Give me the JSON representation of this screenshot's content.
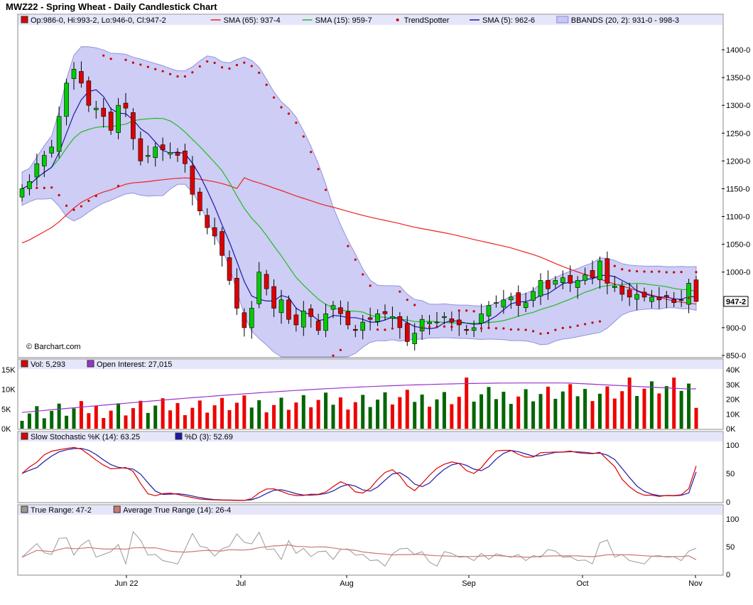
{
  "header": {
    "title": "MWZ22 - Spring Wheat - Daily Candlestick Chart"
  },
  "colors": {
    "up": "#00cc00",
    "down": "#dd0000",
    "sma65": "#ee2222",
    "sma15": "#22bb22",
    "sma5": "#1a1aaa",
    "trend": "#cc0000",
    "bands": "#c8c8f4",
    "band_edge": "#8888dd",
    "legend_bar": "#e6e6fb",
    "oi": "#9933cc",
    "k": "#dd0000",
    "d": "#1a1aaa",
    "tr": "#999999",
    "atr": "#cc7777",
    "vol_up": "#006600",
    "vol_down": "#ee0000"
  },
  "watermark": "© Barchart.com",
  "price_panel": {
    "legend": [
      {
        "swatch": "box",
        "color": "#dd0000",
        "label": "Op:986-0, Hi:993-2, Lo:946-0, Cl:947-2"
      },
      {
        "swatch": "line",
        "color": "#ee2222",
        "label": "SMA (65): 937-4"
      },
      {
        "swatch": "line",
        "color": "#22bb22",
        "label": "SMA (15): 959-7"
      },
      {
        "swatch": "dot",
        "color": "#cc0000",
        "label": "TrendSpotter"
      },
      {
        "swatch": "line",
        "color": "#1a1aaa",
        "label": "SMA (5): 962-6"
      },
      {
        "swatch": "band",
        "color": "#c8c8f4",
        "label": "BBANDS (20, 2): 931-0 - 998-3"
      }
    ],
    "y_ticks": [
      "1400-0",
      "1350-0",
      "1300-0",
      "1250-0",
      "1200-0",
      "1150-0",
      "1100-0",
      "1050-0",
      "1000-0",
      "900-0",
      "850-0"
    ],
    "last_price": "947-2"
  },
  "volume_panel": {
    "legend": [
      {
        "swatch": "box",
        "color": "#dd0000",
        "label": "Vol: 5,293"
      },
      {
        "swatch": "box",
        "color": "#9933cc",
        "label": "Open Interest: 27,015"
      }
    ],
    "left_ticks": [
      "15K",
      "10K",
      "5K",
      "0K"
    ],
    "right_ticks": [
      "40K",
      "30K",
      "20K",
      "10K",
      "0K"
    ]
  },
  "stoch_panel": {
    "legend": [
      {
        "swatch": "box",
        "color": "#dd0000",
        "label": "Slow Stochastic %K (14): 63.25"
      },
      {
        "swatch": "box",
        "color": "#1a1aaa",
        "label": "%D (3): 52.69"
      }
    ],
    "y_ticks": [
      "100",
      "50",
      "0"
    ]
  },
  "tr_panel": {
    "legend": [
      {
        "swatch": "box",
        "color": "#999999",
        "label": "True Range: 47-2"
      },
      {
        "swatch": "box",
        "color": "#cc7777",
        "label": "Average True Range (14): 26-4"
      }
    ],
    "y_ticks": [
      "100",
      "50",
      "0"
    ]
  },
  "x_labels": [
    "Jun 22",
    "Jul",
    "Aug",
    "Sep",
    "Oct",
    "Nov"
  ],
  "chart_data": {
    "type": "candlestick",
    "title": "MWZ22 - Spring Wheat - Daily Candlestick Chart",
    "x_months": [
      "Jun 22",
      "Jul",
      "Aug",
      "Sep",
      "Oct",
      "Nov"
    ],
    "price_range": [
      850,
      1400
    ],
    "last": {
      "open": 986,
      "high": 993.25,
      "low": 946,
      "close": 947.25
    },
    "sma65_last": 937.5,
    "sma15_last": 959.875,
    "sma5_last": 962.75,
    "bbands_last": [
      931,
      998.375
    ],
    "closes": [
      1150,
      1163,
      1195,
      1210,
      1225,
      1280,
      1340,
      1365,
      1340,
      1300,
      1295,
      1280,
      1255,
      1300,
      1295,
      1240,
      1200,
      1210,
      1225,
      1220,
      1215,
      1210,
      1195,
      1140,
      1110,
      1080,
      1065,
      1030,
      985,
      935,
      900,
      935,
      1000,
      970,
      935,
      950,
      915,
      905,
      930,
      920,
      895,
      925,
      940,
      925,
      905,
      895,
      910,
      915,
      925,
      925,
      920,
      900,
      875,
      890,
      915,
      910,
      910,
      920,
      910,
      905,
      895,
      900,
      925,
      940,
      945,
      950,
      955,
      940,
      945,
      965,
      985,
      970,
      985,
      990,
      980,
      985,
      995,
      990,
      1020,
      980,
      975,
      960,
      955,
      960,
      955,
      955,
      950,
      955,
      945,
      950,
      980,
      947.25
    ],
    "volume_left_range": [
      0,
      15000
    ],
    "oi_range": [
      0,
      40000
    ],
    "volume_last": 5293,
    "open_interest_last": 27015,
    "stoch_k_last": 63.25,
    "stoch_d_last": 52.69,
    "true_range_last": 47.25,
    "atr_last": 26.5
  }
}
